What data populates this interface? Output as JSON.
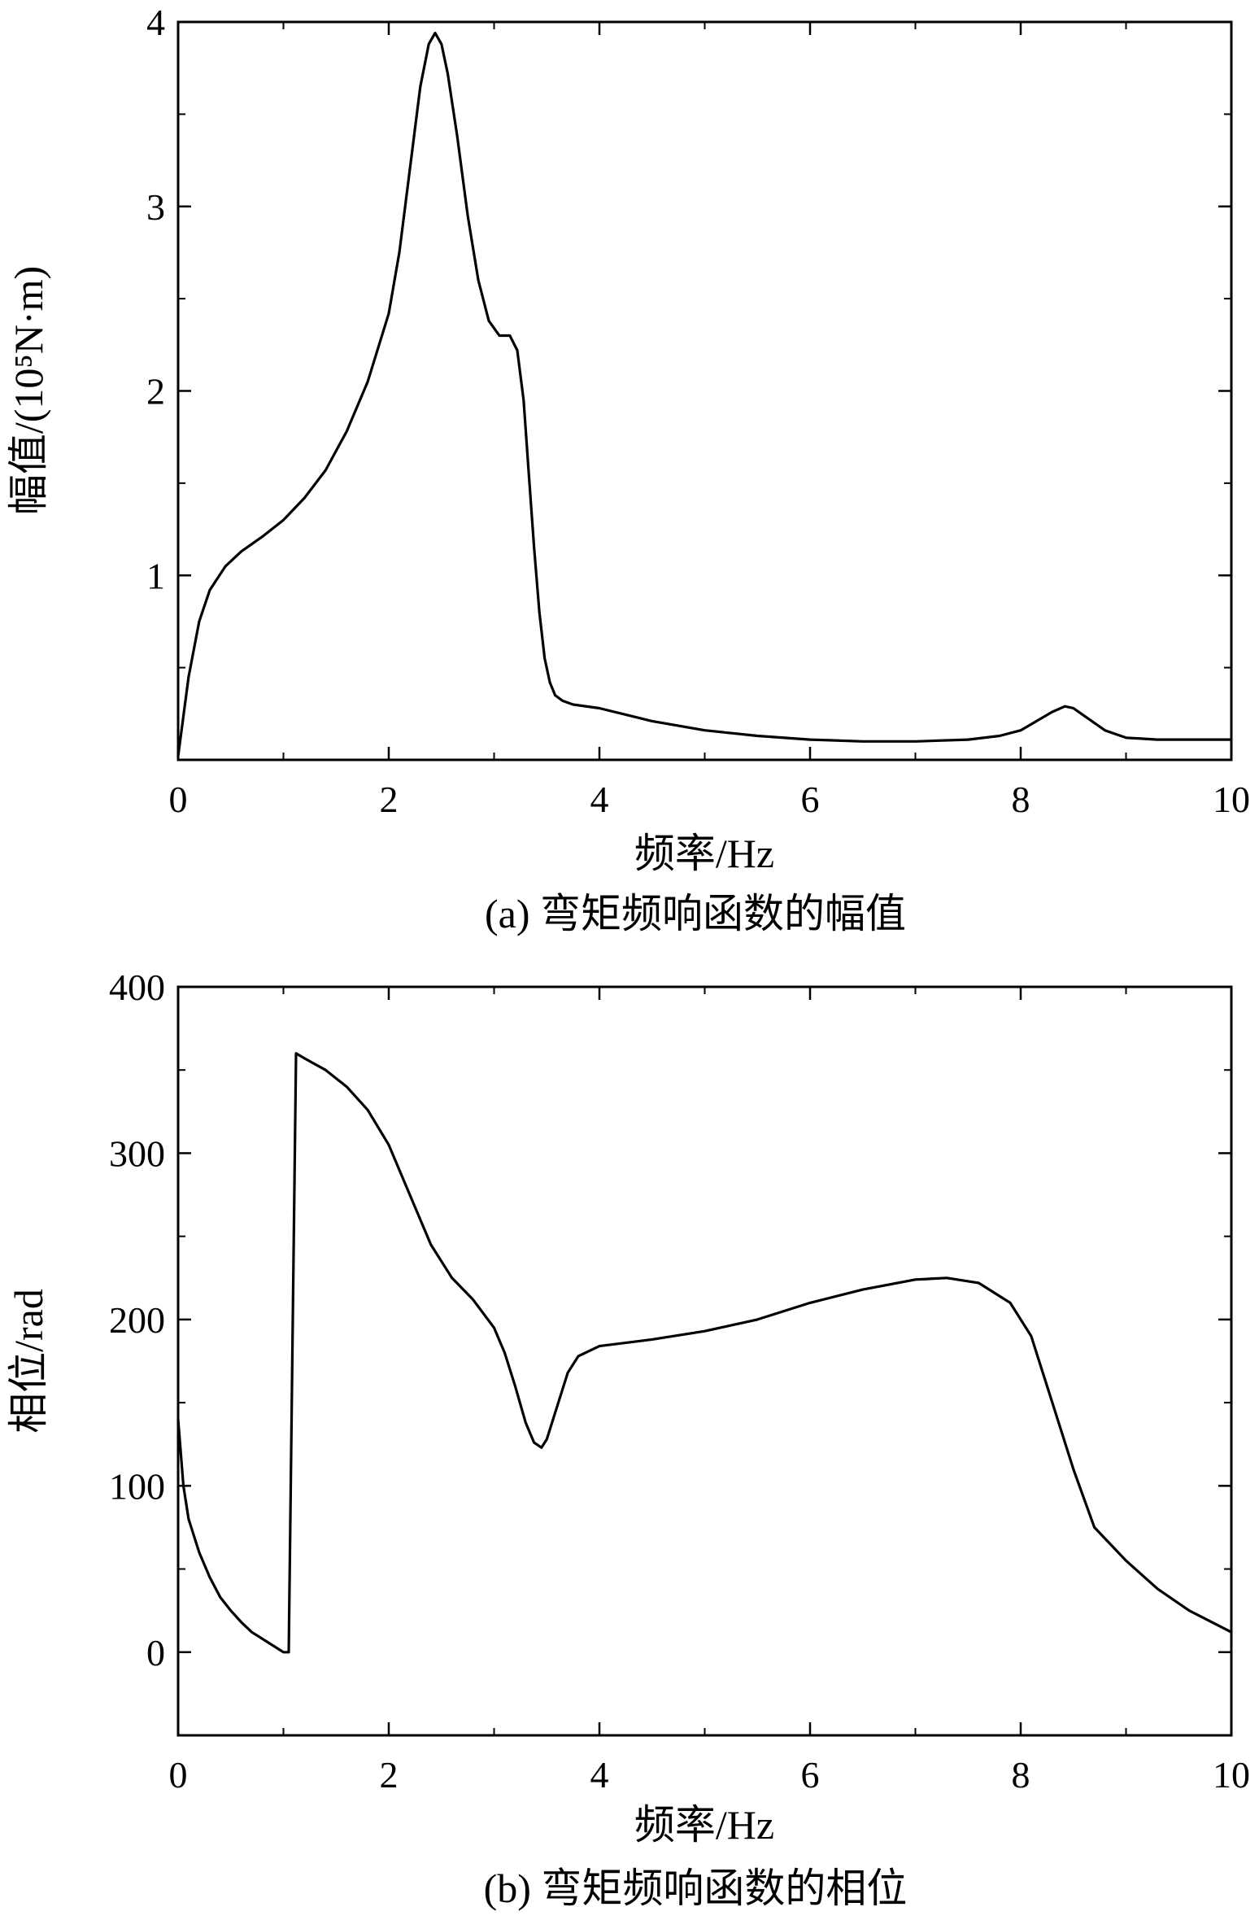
{
  "chart_data": [
    {
      "type": "line",
      "caption": "(a) 弯矩频响函数的幅值",
      "xlabel": "频率/Hz",
      "ylabel": "幅值/(10⁵N·m)",
      "xlim": [
        0,
        10
      ],
      "ylim": [
        0,
        4
      ],
      "xticks": [
        0,
        2,
        4,
        6,
        8,
        10
      ],
      "yticks": [
        1,
        2,
        3,
        4
      ],
      "grid": false,
      "legend": "none",
      "line_color": "#000000",
      "series": [
        {
          "x": [
            0,
            0.1,
            0.2,
            0.3,
            0.45,
            0.6,
            0.8,
            1.0,
            1.2,
            1.4,
            1.6,
            1.8,
            2.0,
            2.1,
            2.2,
            2.3,
            2.38,
            2.44,
            2.5,
            2.56,
            2.65,
            2.75,
            2.85,
            2.95,
            3.05,
            3.15,
            3.22,
            3.28,
            3.33,
            3.38,
            3.43,
            3.48,
            3.53,
            3.58,
            3.65,
            3.75,
            4.0,
            4.5,
            5.0,
            5.5,
            6.0,
            6.5,
            7.0,
            7.5,
            7.8,
            8.0,
            8.15,
            8.3,
            8.42,
            8.5,
            8.6,
            8.8,
            9.0,
            9.3,
            9.6,
            10.0
          ],
          "y": [
            0.02,
            0.45,
            0.75,
            0.92,
            1.05,
            1.13,
            1.21,
            1.3,
            1.42,
            1.57,
            1.78,
            2.05,
            2.42,
            2.75,
            3.2,
            3.65,
            3.88,
            3.94,
            3.88,
            3.72,
            3.38,
            2.95,
            2.6,
            2.38,
            2.3,
            2.3,
            2.22,
            1.95,
            1.55,
            1.15,
            0.8,
            0.55,
            0.42,
            0.35,
            0.32,
            0.3,
            0.28,
            0.21,
            0.16,
            0.13,
            0.11,
            0.1,
            0.1,
            0.11,
            0.13,
            0.16,
            0.21,
            0.26,
            0.29,
            0.28,
            0.24,
            0.16,
            0.12,
            0.11,
            0.11,
            0.11
          ]
        }
      ]
    },
    {
      "type": "line",
      "caption": "(b) 弯矩频响函数的相位",
      "xlabel": "频率/Hz",
      "ylabel": "相位/rad",
      "xlim": [
        0,
        10
      ],
      "ylim": [
        -50,
        400
      ],
      "xticks": [
        0,
        2,
        4,
        6,
        8,
        10
      ],
      "yticks": [
        0,
        100,
        200,
        300,
        400
      ],
      "grid": false,
      "legend": "none",
      "line_color": "#000000",
      "series": [
        {
          "x": [
            0,
            0.05,
            0.1,
            0.2,
            0.3,
            0.4,
            0.5,
            0.6,
            0.7,
            0.8,
            0.9,
            1.0,
            1.05,
            1.12,
            1.2,
            1.4,
            1.6,
            1.8,
            2.0,
            2.2,
            2.4,
            2.6,
            2.8,
            3.0,
            3.1,
            3.2,
            3.3,
            3.38,
            3.45,
            3.5,
            3.6,
            3.7,
            3.8,
            4.0,
            4.5,
            5.0,
            5.5,
            6.0,
            6.5,
            7.0,
            7.3,
            7.6,
            7.9,
            8.1,
            8.3,
            8.5,
            8.7,
            9.0,
            9.3,
            9.6,
            10.0
          ],
          "y": [
            140,
            100,
            80,
            60,
            45,
            33,
            25,
            18,
            12,
            8,
            4,
            0,
            0,
            360,
            357,
            350,
            340,
            326,
            305,
            275,
            245,
            225,
            212,
            195,
            180,
            160,
            138,
            126,
            123,
            128,
            148,
            168,
            178,
            184,
            188,
            193,
            200,
            210,
            218,
            224,
            225,
            222,
            210,
            190,
            150,
            110,
            75,
            55,
            38,
            25,
            12
          ]
        }
      ]
    }
  ]
}
